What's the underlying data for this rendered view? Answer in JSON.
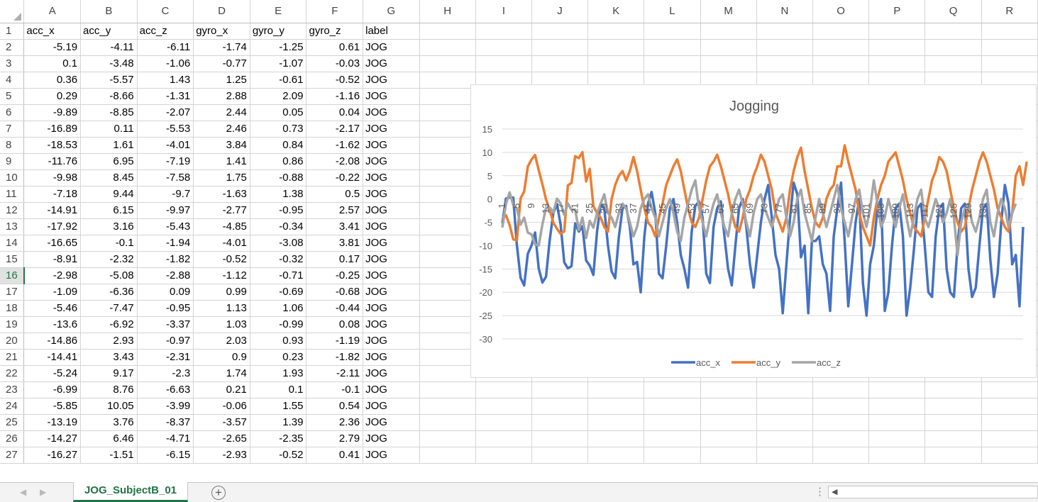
{
  "columns": [
    "A",
    "B",
    "C",
    "D",
    "E",
    "F",
    "G",
    "H",
    "I",
    "J",
    "K",
    "L",
    "M",
    "N",
    "O",
    "P",
    "Q",
    "R"
  ],
  "header_row": [
    "acc_x",
    "acc_y",
    "acc_z",
    "gyro_x",
    "gyro_y",
    "gyro_z",
    "label"
  ],
  "rows": [
    [
      "-5.19",
      "-4.11",
      "-6.11",
      "-1.74",
      "-1.25",
      "0.61",
      "JOG"
    ],
    [
      "0.1",
      "-3.48",
      "-1.06",
      "-0.77",
      "-1.07",
      "-0.03",
      "JOG"
    ],
    [
      "0.36",
      "-5.57",
      "1.43",
      "1.25",
      "-0.61",
      "-0.52",
      "JOG"
    ],
    [
      "0.29",
      "-8.66",
      "-1.31",
      "2.88",
      "2.09",
      "-1.16",
      "JOG"
    ],
    [
      "-9.89",
      "-8.85",
      "-2.07",
      "2.44",
      "0.05",
      "0.04",
      "JOG"
    ],
    [
      "-16.89",
      "0.11",
      "-5.53",
      "2.46",
      "0.73",
      "-2.17",
      "JOG"
    ],
    [
      "-18.53",
      "1.61",
      "-4.01",
      "3.84",
      "0.84",
      "-1.62",
      "JOG"
    ],
    [
      "-11.76",
      "6.95",
      "-7.19",
      "1.41",
      "0.86",
      "-2.08",
      "JOG"
    ],
    [
      "-9.98",
      "8.45",
      "-7.58",
      "1.75",
      "-0.88",
      "-0.22",
      "JOG"
    ],
    [
      "-7.18",
      "9.44",
      "-9.7",
      "-1.63",
      "1.38",
      "0.5",
      "JOG"
    ],
    [
      "-14.91",
      "6.15",
      "-9.97",
      "-2.77",
      "-0.95",
      "2.57",
      "JOG"
    ],
    [
      "-17.92",
      "3.16",
      "-5.43",
      "-4.85",
      "-0.34",
      "3.41",
      "JOG"
    ],
    [
      "-16.65",
      "-0.1",
      "-1.94",
      "-4.01",
      "-3.08",
      "3.81",
      "JOG"
    ],
    [
      "-8.91",
      "-2.32",
      "-1.82",
      "-0.52",
      "-0.32",
      "0.17",
      "JOG"
    ],
    [
      "-2.98",
      "-5.08",
      "-2.88",
      "-1.12",
      "-0.71",
      "-0.25",
      "JOG"
    ],
    [
      "-1.09",
      "-6.36",
      "0.09",
      "0.99",
      "-0.69",
      "-0.68",
      "JOG"
    ],
    [
      "-5.46",
      "-7.47",
      "-0.95",
      "1.13",
      "1.06",
      "-0.44",
      "JOG"
    ],
    [
      "-13.6",
      "-6.92",
      "-3.37",
      "1.03",
      "-0.99",
      "0.08",
      "JOG"
    ],
    [
      "-14.86",
      "2.93",
      "-0.97",
      "2.03",
      "0.93",
      "-1.19",
      "JOG"
    ],
    [
      "-14.41",
      "3.43",
      "-2.31",
      "0.9",
      "0.23",
      "-1.82",
      "JOG"
    ],
    [
      "-5.24",
      "9.17",
      "-2.3",
      "1.74",
      "1.93",
      "-2.11",
      "JOG"
    ],
    [
      "-6.99",
      "8.76",
      "-6.63",
      "0.21",
      "0.1",
      "-0.1",
      "JOG"
    ],
    [
      "-5.85",
      "10.05",
      "-3.99",
      "-0.06",
      "1.55",
      "0.54",
      "JOG"
    ],
    [
      "-13.19",
      "3.76",
      "-8.37",
      "-3.57",
      "1.39",
      "2.36",
      "JOG"
    ],
    [
      "-14.27",
      "6.46",
      "-4.71",
      "-2.65",
      "-2.35",
      "2.79",
      "JOG"
    ],
    [
      "-16.27",
      "-1.51",
      "-6.15",
      "-2.93",
      "-0.52",
      "0.41",
      "JOG"
    ]
  ],
  "selected_row": "16",
  "sheet_tab": {
    "name": "JOG_SubjectB_01",
    "add_symbol": "+"
  },
  "colors": {
    "accent": "#217346",
    "acc_x": "#4472c4",
    "acc_y": "#ed7d31",
    "acc_z": "#a5a5a5"
  },
  "chart_data": {
    "type": "line",
    "title": "Jogging",
    "ylim": [
      -30,
      15
    ],
    "yticks": [
      "15",
      "10",
      "5",
      "0",
      "-5",
      "-10",
      "-15",
      "-20",
      "-25",
      "-30"
    ],
    "xticks": [
      "1",
      "5",
      "9",
      "13",
      "17",
      "21",
      "25",
      "29",
      "33",
      "37",
      "41",
      "45",
      "49",
      "53",
      "57",
      "61",
      "65",
      "69",
      "73",
      "77",
      "81",
      "85",
      "89",
      "93",
      "97",
      "101",
      "105",
      "109",
      "113",
      "117",
      "121",
      "125",
      "129",
      "133"
    ],
    "legend_position": "bottom",
    "grid": true,
    "series": [
      {
        "name": "acc_x",
        "values": [
          -5.19,
          0.1,
          0.36,
          0.29,
          -9.89,
          -16.89,
          -18.53,
          -11.76,
          -9.98,
          -7.18,
          -14.91,
          -17.92,
          -16.65,
          -8.91,
          -2.98,
          -1.09,
          -5.46,
          -13.6,
          -14.86,
          -14.41,
          -5.24,
          -6.99,
          -5.85,
          -13.19,
          -14.27,
          -16.27,
          -7,
          -1,
          -2,
          -10,
          -15.5,
          -17,
          -8,
          -2,
          -1.5,
          -6,
          -14,
          -13.5,
          -20,
          -8,
          -1,
          1.5,
          -3,
          -16,
          -17,
          -10,
          -2,
          0,
          -5,
          -12,
          -15,
          -19,
          -7,
          -1.5,
          -0.5,
          -4,
          -16,
          -18,
          -6,
          -2,
          -0.5,
          -8,
          -15,
          -18.5,
          -10,
          -2,
          0,
          -6,
          -14,
          -19,
          -12,
          -5,
          0,
          3,
          -4,
          -12,
          -15,
          -24.5,
          -14,
          -4,
          3.5,
          1,
          -12.5,
          -10,
          -24.5,
          -9,
          -9,
          -8,
          -14,
          -16,
          -24,
          -8,
          -2,
          3.5,
          -9,
          -23,
          -14,
          -5,
          0,
          -18,
          -25,
          -14,
          -10,
          -2,
          0,
          -24,
          -20,
          -10,
          -2,
          -1,
          -8,
          -25,
          -19,
          -11,
          -2,
          -1,
          -10,
          -20,
          -21,
          -8,
          -2,
          -1,
          -15,
          -20,
          -21,
          -10,
          -2,
          -1,
          -15,
          -21,
          -19,
          -10,
          -2,
          -1,
          -13,
          -21,
          -16,
          -5,
          3,
          -1,
          -14,
          -12,
          -23,
          -6
        ]
      },
      {
        "name": "acc_y",
        "values": [
          -4.11,
          -3.48,
          -5.57,
          -8.66,
          -8.85,
          0.11,
          1.61,
          6.95,
          8.45,
          9.44,
          6.15,
          3.16,
          -0.1,
          -2.32,
          -5.08,
          -6.36,
          -7.47,
          -6.92,
          2.93,
          3.43,
          9.17,
          8.76,
          10.05,
          3.76,
          6.46,
          -1.51,
          -3,
          -4,
          -6,
          -7,
          0,
          3,
          5,
          6,
          4,
          6,
          9,
          6,
          2,
          -2,
          -5,
          -6,
          -8,
          -4,
          -1,
          3,
          5,
          7,
          8.5,
          6,
          2,
          -2,
          -5,
          -6,
          -4,
          0,
          4,
          7,
          8,
          9.5,
          7,
          4,
          1,
          -3,
          -6,
          -7,
          -4,
          0,
          2,
          5,
          7,
          9.5,
          8,
          5,
          2,
          -3,
          -5,
          -7,
          -4,
          2,
          6,
          9,
          11,
          6,
          2,
          -2,
          -5,
          -6,
          -4,
          0,
          2,
          3,
          7,
          7,
          11.5,
          8,
          5,
          2,
          -3,
          -6,
          -8,
          -10,
          -4,
          0,
          3,
          5,
          8,
          9,
          10,
          7,
          4,
          0,
          -3,
          -6,
          -7,
          -8,
          -4,
          0,
          4,
          6,
          9,
          8,
          6,
          2,
          -2,
          -5,
          -7,
          -6,
          -2,
          2,
          5,
          8,
          10,
          8,
          5,
          2,
          -2,
          -4,
          -6,
          -7,
          -3,
          5,
          7,
          3,
          8
        ]
      },
      {
        "name": "acc_z",
        "values": [
          -6.11,
          -1.06,
          1.43,
          -1.31,
          -2.07,
          -5.53,
          -4.01,
          -7.19,
          -7.58,
          -9.7,
          -9.97,
          -5.43,
          -1.94,
          -1.82,
          -2.88,
          0.09,
          -0.95,
          -3.37,
          -0.97,
          -2.31,
          -2.3,
          -6.63,
          -3.99,
          -8.37,
          -4.71,
          -6.15,
          -3,
          -1,
          1,
          -3,
          -4,
          -6,
          -3,
          -1,
          -2,
          -5,
          -8,
          -6,
          -2,
          0,
          1,
          -2,
          -4,
          -8,
          -5,
          -2,
          0,
          -3,
          -7,
          -9,
          -4,
          -1,
          2,
          4,
          -2,
          -5,
          -8,
          -4,
          -1,
          1,
          -3,
          -6,
          -8,
          -3,
          0,
          2,
          -1,
          -5,
          -8,
          -3,
          0,
          1,
          -2,
          -4,
          -6,
          -3,
          0,
          1,
          -4,
          -8,
          -5,
          0,
          2,
          -3,
          -6,
          -9,
          -4,
          0,
          -3,
          -6,
          -3,
          0,
          3,
          -2,
          -5,
          -8,
          -4,
          0,
          2,
          -3,
          -6,
          -2,
          4,
          -1,
          -6,
          -4,
          0,
          -3,
          -6,
          -2,
          1,
          -4,
          -8,
          -4,
          0,
          2,
          -4,
          -6,
          -3,
          0,
          -2,
          -5,
          -3,
          0,
          -4,
          -12,
          -5,
          -2,
          -1,
          -5,
          -7,
          -4,
          0,
          2,
          -5,
          -8,
          -3,
          0,
          -2,
          -6,
          -3,
          -1
        ]
      }
    ]
  }
}
